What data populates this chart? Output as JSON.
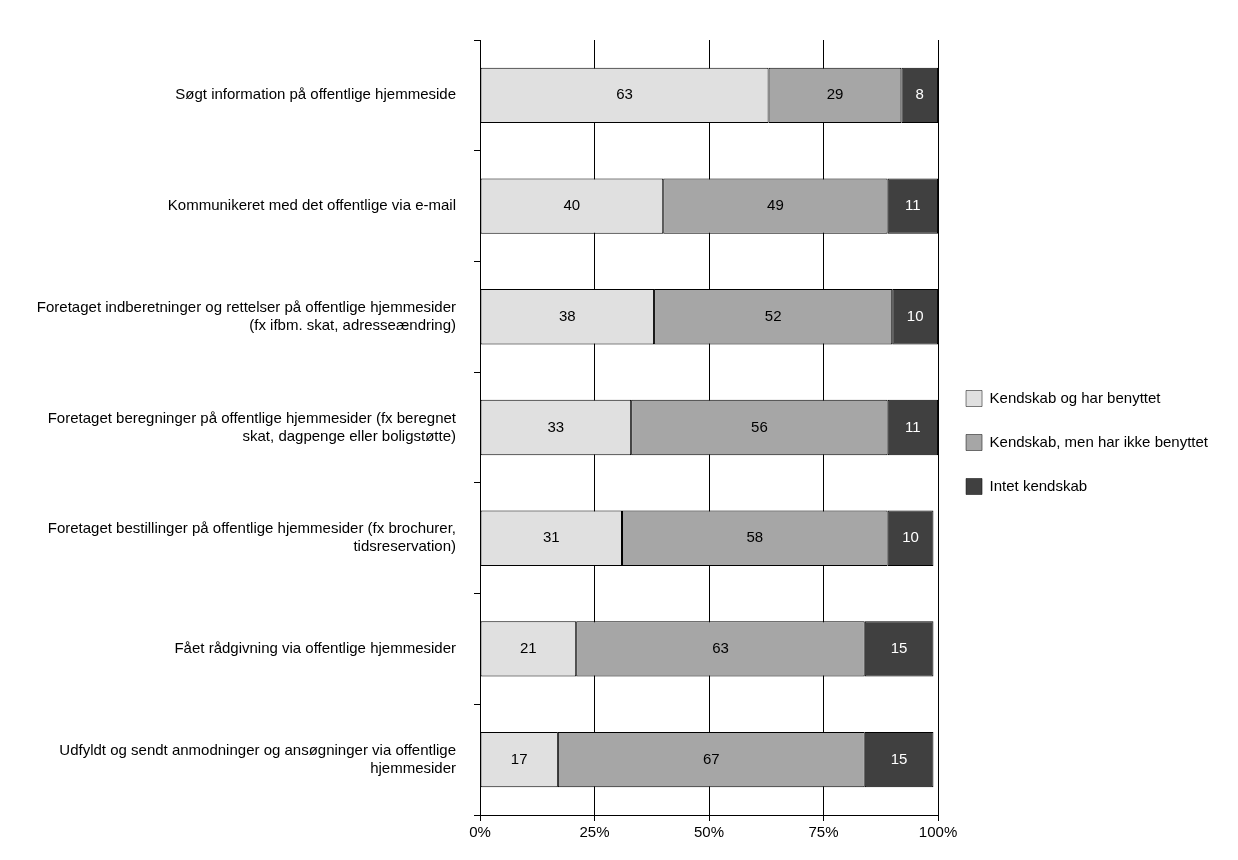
{
  "chart_data": {
    "type": "bar",
    "orientation": "horizontal",
    "stacked": true,
    "categories": [
      "Søgt information på offentlige hjemmeside",
      "Kommunikeret med det offentlige via e-mail",
      "Foretaget indberetninger og rettelser på offentlige hjemmesider (fx ifbm. skat, adresseændring)",
      "Foretaget beregninger på offentlige hjemmesider (fx beregnet skat, dagpenge eller boligstøtte)",
      "Foretaget bestillinger på offentlige hjemmesider (fx brochurer, tidsreservation)",
      "Fået rådgivning via offentlige hjemmesider",
      "Udfyldt og sendt anmodninger og ansøgninger via offentlige hjemmesider"
    ],
    "series": [
      {
        "name": "Kendskab og har benyttet",
        "color": "#e0e0e0",
        "values": [
          63,
          40,
          38,
          33,
          31,
          21,
          17
        ]
      },
      {
        "name": "Kendskab, men har ikke benyttet",
        "color": "#a6a6a6",
        "values": [
          29,
          49,
          52,
          56,
          58,
          63,
          67
        ]
      },
      {
        "name": "Intet kendskab",
        "color": "#404040",
        "values": [
          8,
          11,
          10,
          11,
          10,
          15,
          15
        ]
      }
    ],
    "xlim": [
      0,
      100
    ],
    "xticks": [
      {
        "value": 0,
        "label": "0%"
      },
      {
        "value": 25,
        "label": "25%"
      },
      {
        "value": 50,
        "label": "50%"
      },
      {
        "value": 75,
        "label": "75%"
      },
      {
        "value": 100,
        "label": "100%"
      }
    ],
    "grid": "x",
    "legend": "right",
    "data_labels": true
  }
}
